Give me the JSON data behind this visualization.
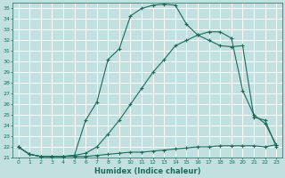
{
  "xlabel": "Humidex (Indice chaleur)",
  "bg_color": "#c2e0e0",
  "grid_color": "#ffffff",
  "line_color": "#1a6b5a",
  "ylim": [
    21,
    35.5
  ],
  "xlim": [
    -0.5,
    23.5
  ],
  "yticks": [
    21,
    22,
    23,
    24,
    25,
    26,
    27,
    28,
    29,
    30,
    31,
    32,
    33,
    34,
    35
  ],
  "xticks": [
    0,
    1,
    2,
    3,
    4,
    5,
    6,
    7,
    8,
    9,
    10,
    11,
    12,
    13,
    14,
    15,
    16,
    17,
    18,
    19,
    20,
    21,
    22,
    23
  ],
  "line1_x": [
    0,
    1,
    2,
    3,
    4,
    5,
    6,
    7,
    8,
    9,
    10,
    11,
    12,
    13,
    14,
    15,
    16,
    17,
    18,
    19,
    20,
    21,
    22,
    23
  ],
  "line1_y": [
    22.0,
    21.3,
    21.1,
    21.1,
    21.1,
    21.1,
    21.1,
    21.2,
    21.3,
    21.4,
    21.5,
    21.5,
    21.6,
    21.7,
    21.8,
    21.9,
    22.0,
    22.0,
    22.1,
    22.1,
    22.1,
    22.1,
    22.0,
    22.2
  ],
  "line2_x": [
    0,
    1,
    2,
    3,
    4,
    5,
    6,
    7,
    8,
    9,
    10,
    11,
    12,
    13,
    14,
    15,
    16,
    17,
    18,
    19,
    20,
    21,
    22,
    23
  ],
  "line2_y": [
    22.0,
    21.3,
    21.1,
    21.1,
    21.1,
    21.2,
    24.5,
    26.2,
    30.2,
    31.2,
    34.3,
    35.0,
    35.3,
    35.4,
    35.3,
    33.5,
    32.5,
    32.0,
    31.5,
    31.4,
    31.5,
    24.8,
    24.5,
    22.0
  ],
  "line3_x": [
    0,
    1,
    2,
    3,
    4,
    5,
    6,
    7,
    8,
    9,
    10,
    11,
    12,
    13,
    14,
    15,
    16,
    17,
    18,
    19,
    20,
    21,
    22,
    23
  ],
  "line3_y": [
    22.0,
    21.3,
    21.1,
    21.1,
    21.1,
    21.2,
    21.4,
    22.0,
    23.2,
    24.5,
    26.0,
    27.5,
    29.0,
    30.2,
    31.5,
    32.0,
    32.5,
    32.8,
    32.8,
    32.2,
    27.3,
    25.0,
    24.2,
    22.2
  ]
}
